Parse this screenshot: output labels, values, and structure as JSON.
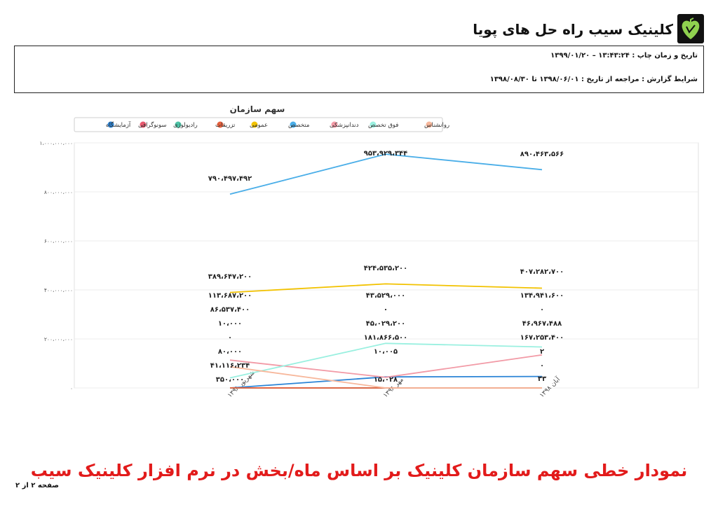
{
  "header": {
    "title": "کلینیک سیب راه حل های پویا"
  },
  "info": {
    "print_label": "تاریخ و زمان چاپ :",
    "print_value": "۱۳:۴۳:۲۴ – ۱۳۹۹/۰۱/۲۰",
    "cond_label": "شرایط گزارش :",
    "cond_value": "مراجعه از تاریخ : ۱۳۹۸/۰۶/۰۱ تا ۱۳۹۸/۰۸/۳۰"
  },
  "footer": {
    "title": "نمودار خطی سهم سازمان کلینیک بر اساس ماه/بخش در نرم افزار کلینیک سیب",
    "page": "صفحه ۲ از ۲"
  },
  "chart_data": {
    "type": "line",
    "title": "سهم سازمان",
    "categories": [
      "شهریور ۱۳۹۸",
      "مهر ۱۳۹۸",
      "آبان ۱۳۹۸"
    ],
    "ylim": [
      0,
      1000000000
    ],
    "yticks": [
      0,
      200000000,
      400000000,
      600000000,
      800000000,
      1000000000
    ],
    "ytick_labels": [
      "۰",
      "۲۰۰،۰۰۰،۰۰۰",
      "۴۰۰،۰۰۰،۰۰۰",
      "۶۰۰،۰۰۰،۰۰۰",
      "۸۰۰،۰۰۰،۰۰۰",
      "۱،۰۰۰،۰۰۰،۰۰۰"
    ],
    "grid": true,
    "legend_position": "top",
    "series": [
      {
        "name": "آزمایشگاه",
        "color": "#2b84d6",
        "values": [
          10000,
          45029200,
          46967488
        ],
        "labels": [
          "۱۰،۰۰۰",
          "۴۵،۰۲۹،۲۰۰",
          "۴۶،۹۶۷،۴۸۸"
        ]
      },
      {
        "name": "سونوگرافی",
        "color": "#e8596f",
        "values": [
          0,
          0,
          0
        ],
        "labels": [
          "۰",
          "۰",
          "۰"
        ]
      },
      {
        "name": "رادیولوژی",
        "color": "#4cc3a6",
        "values": [
          80000,
          10005,
          2
        ],
        "labels": [
          "۸۰،۰۰۰",
          "۱۰،۰۰۵",
          "۲"
        ]
      },
      {
        "name": "تزریقات",
        "color": "#e8603c",
        "values": [
          350000,
          15028,
          33
        ],
        "labels": [
          "۳۵۰،۰۰۰",
          "۱۵،۰۲۸",
          "۳۳"
        ]
      },
      {
        "name": "عمومی",
        "color": "#f2c200",
        "values": [
          389647200,
          424535200,
          407282700
        ],
        "labels": [
          "۳۸۹،۶۴۷،۲۰۰",
          "۴۲۴،۵۳۵،۲۰۰",
          "۴۰۷،۲۸۲،۷۰۰"
        ]
      },
      {
        "name": "متخصص",
        "color": "#4aaee8",
        "values": [
          790497492,
          953929344,
          890463566
        ],
        "labels": [
          "۷۹۰،۴۹۷،۴۹۲",
          "۹۵۳،۹۲۹،۳۴۴",
          "۸۹۰،۴۶۳،۵۶۶"
        ]
      },
      {
        "name": "دندانپزشکی",
        "color": "#f29aa6",
        "values": [
          113687200,
          43529000,
          134941600
        ],
        "labels": [
          "۱۱۳،۶۸۷،۲۰۰",
          "۴۳،۵۲۹،۰۰۰",
          "۱۳۴،۹۴۱،۶۰۰"
        ]
      },
      {
        "name": "فوق تخصص",
        "color": "#9af0e0",
        "values": [
          41116234,
          181866500,
          167253400
        ],
        "labels": [
          "۴۱،۱۱۶،۲۳۴",
          "۱۸۱،۸۶۶،۵۰۰",
          "۱۶۷،۲۵۳،۴۰۰"
        ]
      },
      {
        "name": "روانشناس",
        "color": "#f7b79b",
        "values": [
          86537400,
          0,
          0
        ],
        "labels": [
          "۸۶،۵۳۷،۴۰۰",
          "۰",
          "۰"
        ]
      }
    ]
  }
}
